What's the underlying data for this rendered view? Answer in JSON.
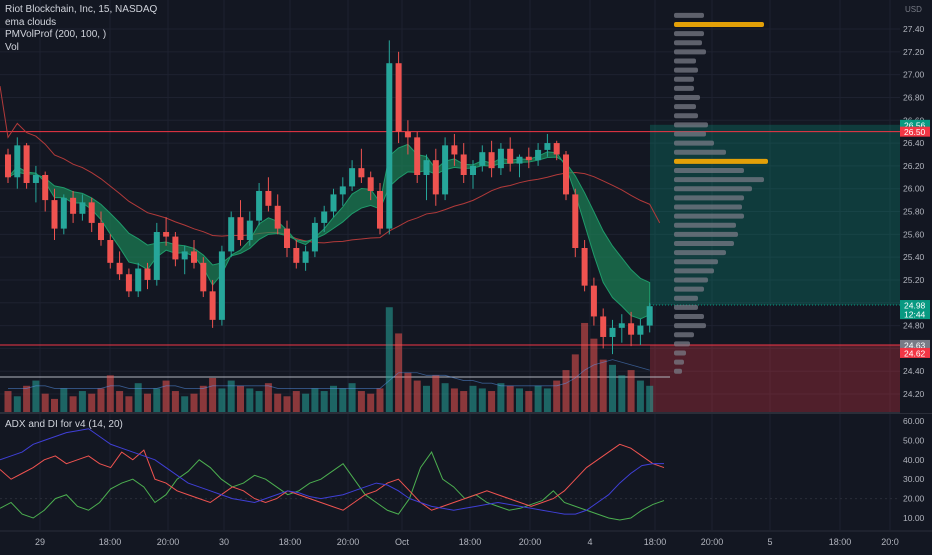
{
  "legend": {
    "symbol": "Riot Blockchain, Inc, 15, NASDAQ",
    "indicators": [
      "ema clouds",
      "PMVolProf (200, 100, )",
      "Vol"
    ]
  },
  "sub_pane": {
    "title": "ADX and DI for v4 (14, 20)"
  },
  "price_axis": {
    "currency": "USD",
    "ticks": [
      "27.40",
      "27.20",
      "27.00",
      "26.80",
      "26.60",
      "26.40",
      "26.20",
      "26.00",
      "25.80",
      "25.60",
      "25.40",
      "25.20",
      "25.00",
      "24.80",
      "24.60",
      "24.40",
      "24.20"
    ],
    "badges": [
      {
        "label": "26.56",
        "color": "#089981",
        "price": 26.56
      },
      {
        "label": "26.50",
        "color": "#f23645",
        "price": 26.5
      },
      {
        "label": "24.98",
        "color": "#089981",
        "price": 24.98
      },
      {
        "label": "12:44",
        "color": "#089981",
        "price": 24.9
      },
      {
        "label": "24.63",
        "color": "#787b86",
        "price": 24.63
      },
      {
        "label": "24.62",
        "color": "#f23645",
        "price": 24.56
      }
    ]
  },
  "adx_axis": {
    "ticks": [
      "60.00",
      "50.00",
      "40.00",
      "30.00",
      "20.00",
      "10.00"
    ]
  },
  "time_axis": {
    "ticks": [
      "29",
      "18:00",
      "20:00",
      "30",
      "18:00",
      "20:00",
      "Oct",
      "18:00",
      "20:00",
      "4",
      "18:00",
      "20:00",
      "5",
      "18:00",
      "20:0"
    ]
  },
  "colors": {
    "background": "#131722",
    "up": "#26a69a",
    "down": "#ef5350",
    "grid": "#1e2230",
    "cloud": "#1b8a5a",
    "sma": "#b23a3a",
    "level": "#f23645",
    "plus_di": "#4caf50",
    "minus_di": "#ef5350",
    "adx": "#3f3fd6",
    "vp_bar": "#787b86",
    "vp_poc": "#e3a008"
  },
  "chart_data": {
    "type": "candlestick",
    "title": "Riot Blockchain, Inc, 15, NASDAQ",
    "ylim": [
      24.1,
      27.5
    ],
    "horizontal_levels": [
      26.5,
      24.63
    ],
    "position_box": {
      "entry": 24.98,
      "target": 26.56,
      "stop": 24.1
    },
    "candles": [
      [
        26.3,
        26.35,
        26.05,
        26.1
      ],
      [
        26.1,
        26.45,
        26.0,
        26.38
      ],
      [
        26.38,
        26.4,
        26.0,
        26.05
      ],
      [
        26.05,
        26.2,
        25.88,
        26.12
      ],
      [
        26.12,
        26.15,
        25.8,
        25.9
      ],
      [
        25.9,
        26.0,
        25.55,
        25.65
      ],
      [
        25.65,
        25.95,
        25.6,
        25.92
      ],
      [
        25.92,
        25.98,
        25.7,
        25.78
      ],
      [
        25.78,
        25.95,
        25.72,
        25.88
      ],
      [
        25.88,
        25.92,
        25.62,
        25.7
      ],
      [
        25.7,
        25.8,
        25.5,
        25.55
      ],
      [
        25.55,
        25.6,
        25.3,
        25.35
      ],
      [
        25.35,
        25.45,
        25.2,
        25.25
      ],
      [
        25.25,
        25.3,
        25.05,
        25.1
      ],
      [
        25.1,
        25.35,
        25.05,
        25.3
      ],
      [
        25.3,
        25.35,
        25.12,
        25.2
      ],
      [
        25.2,
        25.7,
        25.15,
        25.62
      ],
      [
        25.62,
        25.75,
        25.5,
        25.58
      ],
      [
        25.58,
        25.62,
        25.32,
        25.38
      ],
      [
        25.38,
        25.5,
        25.25,
        25.45
      ],
      [
        25.45,
        25.55,
        25.3,
        25.35
      ],
      [
        25.35,
        25.4,
        25.05,
        25.1
      ],
      [
        25.1,
        25.2,
        24.78,
        24.85
      ],
      [
        24.85,
        25.5,
        24.8,
        25.45
      ],
      [
        25.45,
        25.8,
        25.4,
        25.75
      ],
      [
        25.75,
        25.9,
        25.5,
        25.55
      ],
      [
        25.55,
        25.8,
        25.5,
        25.72
      ],
      [
        25.72,
        26.05,
        25.68,
        25.98
      ],
      [
        25.98,
        26.1,
        25.8,
        25.85
      ],
      [
        25.85,
        25.95,
        25.6,
        25.65
      ],
      [
        25.65,
        25.72,
        25.4,
        25.48
      ],
      [
        25.48,
        25.55,
        25.3,
        25.35
      ],
      [
        25.35,
        25.5,
        25.28,
        25.45
      ],
      [
        25.45,
        25.75,
        25.4,
        25.7
      ],
      [
        25.7,
        25.85,
        25.62,
        25.8
      ],
      [
        25.8,
        26.0,
        25.75,
        25.95
      ],
      [
        25.95,
        26.1,
        25.85,
        26.02
      ],
      [
        26.02,
        26.25,
        25.98,
        26.18
      ],
      [
        26.18,
        26.35,
        26.05,
        26.1
      ],
      [
        26.1,
        26.15,
        25.9,
        25.98
      ],
      [
        25.98,
        26.05,
        25.6,
        25.65
      ],
      [
        25.65,
        27.3,
        25.6,
        27.1
      ],
      [
        27.1,
        27.2,
        26.4,
        26.5
      ],
      [
        26.5,
        26.6,
        26.3,
        26.45
      ],
      [
        26.45,
        26.5,
        26.05,
        26.12
      ],
      [
        26.12,
        26.3,
        25.9,
        26.25
      ],
      [
        26.25,
        26.35,
        25.85,
        25.95
      ],
      [
        25.95,
        26.45,
        25.9,
        26.38
      ],
      [
        26.38,
        26.48,
        26.2,
        26.3
      ],
      [
        26.3,
        26.4,
        26.05,
        26.12
      ],
      [
        26.12,
        26.25,
        26.0,
        26.2
      ],
      [
        26.2,
        26.38,
        26.15,
        26.32
      ],
      [
        26.32,
        26.42,
        26.1,
        26.18
      ],
      [
        26.18,
        26.4,
        26.12,
        26.35
      ],
      [
        26.35,
        26.45,
        26.15,
        26.22
      ],
      [
        26.22,
        26.3,
        26.1,
        26.28
      ],
      [
        26.28,
        26.36,
        26.18,
        26.25
      ],
      [
        26.25,
        26.4,
        26.2,
        26.34
      ],
      [
        26.34,
        26.48,
        26.28,
        26.4
      ],
      [
        26.4,
        26.42,
        26.25,
        26.3
      ],
      [
        26.3,
        26.33,
        25.9,
        25.95
      ],
      [
        25.95,
        26.0,
        25.4,
        25.48
      ],
      [
        25.48,
        25.55,
        25.1,
        25.15
      ],
      [
        25.15,
        25.22,
        24.8,
        24.88
      ],
      [
        24.88,
        24.95,
        24.6,
        24.7
      ],
      [
        24.7,
        24.85,
        24.55,
        24.78
      ],
      [
        24.78,
        24.9,
        24.65,
        24.82
      ],
      [
        24.82,
        24.92,
        24.62,
        24.72
      ],
      [
        24.72,
        24.86,
        24.63,
        24.8
      ],
      [
        24.8,
        25.0,
        24.74,
        24.97
      ]
    ],
    "volume": [
      8,
      6,
      10,
      12,
      7,
      5,
      9,
      6,
      8,
      7,
      9,
      14,
      8,
      6,
      11,
      7,
      9,
      12,
      8,
      6,
      7,
      10,
      13,
      9,
      12,
      10,
      9,
      8,
      11,
      7,
      6,
      8,
      7,
      9,
      8,
      10,
      9,
      11,
      8,
      7,
      9,
      40,
      30,
      15,
      12,
      10,
      14,
      11,
      9,
      8,
      10,
      9,
      8,
      11,
      10,
      9,
      8,
      10,
      9,
      12,
      16,
      22,
      34,
      28,
      20,
      18,
      14,
      16,
      12,
      10
    ],
    "vol_ma": [
      9,
      9,
      9,
      10,
      10,
      9,
      9,
      9,
      9,
      9,
      9,
      10,
      10,
      9,
      9,
      9,
      9,
      10,
      10,
      9,
      9,
      9,
      10,
      10,
      10,
      10,
      10,
      10,
      10,
      9,
      9,
      9,
      9,
      9,
      9,
      9,
      9,
      9,
      9,
      9,
      9,
      12,
      15,
      15,
      15,
      14,
      14,
      14,
      13,
      12,
      12,
      11,
      11,
      10,
      10,
      10,
      10,
      10,
      10,
      10,
      11,
      13,
      16,
      18,
      19,
      20,
      19,
      18,
      17,
      16
    ],
    "volume_profile": {
      "price_bins": [
        27.52,
        27.44,
        27.36,
        27.28,
        27.2,
        27.12,
        27.04,
        26.96,
        26.88,
        26.8,
        26.72,
        26.64,
        26.56,
        26.48,
        26.4,
        26.32,
        26.24,
        26.16,
        26.08,
        26.0,
        25.92,
        25.84,
        25.76,
        25.68,
        25.6,
        25.52,
        25.44,
        25.36,
        25.28,
        25.2,
        25.12,
        25.04,
        24.96,
        24.88,
        24.8,
        24.72,
        24.64,
        24.56,
        24.48,
        24.4
      ],
      "volumes": [
        30,
        90,
        30,
        28,
        32,
        22,
        24,
        20,
        20,
        26,
        22,
        24,
        34,
        32,
        40,
        52,
        94,
        70,
        90,
        78,
        70,
        68,
        70,
        62,
        64,
        60,
        52,
        44,
        40,
        34,
        30,
        24,
        24,
        30,
        32,
        20,
        16,
        12,
        10,
        8
      ],
      "poc_index": [
        1,
        16
      ]
    },
    "adx": {
      "ylim": [
        5,
        62
      ],
      "plus_di": [
        15,
        18,
        12,
        10,
        14,
        20,
        22,
        16,
        14,
        18,
        25,
        28,
        30,
        26,
        18,
        22,
        30,
        34,
        40,
        36,
        30,
        26,
        28,
        32,
        30,
        26,
        22,
        24,
        28,
        30,
        34,
        38,
        30,
        22,
        18,
        14,
        12,
        20,
        36,
        44,
        30,
        26,
        20,
        22,
        18,
        16,
        14,
        15,
        17,
        19,
        24,
        18,
        16,
        14,
        12,
        10,
        9,
        10,
        14,
        17,
        19
      ],
      "minus_di": [
        35,
        30,
        33,
        36,
        40,
        42,
        38,
        40,
        42,
        38,
        36,
        44,
        40,
        45,
        30,
        28,
        24,
        22,
        20,
        18,
        22,
        26,
        24,
        20,
        18,
        20,
        24,
        22,
        20,
        18,
        16,
        14,
        18,
        22,
        24,
        28,
        30,
        24,
        18,
        14,
        16,
        18,
        20,
        22,
        24,
        22,
        20,
        18,
        16,
        18,
        20,
        24,
        30,
        36,
        40,
        44,
        48,
        46,
        42,
        38,
        36
      ],
      "adx": [
        40,
        42,
        44,
        48,
        50,
        52,
        54,
        55,
        56,
        52,
        48,
        46,
        44,
        42,
        40,
        36,
        32,
        28,
        26,
        24,
        22,
        20,
        19,
        18,
        20,
        22,
        24,
        23,
        21,
        20,
        21,
        22,
        24,
        26,
        28,
        27,
        24,
        20,
        18,
        16,
        15,
        14,
        15,
        16,
        17,
        18,
        17,
        16,
        15,
        14,
        13,
        12,
        12,
        14,
        18,
        22,
        28,
        33,
        37,
        38,
        38
      ]
    }
  }
}
